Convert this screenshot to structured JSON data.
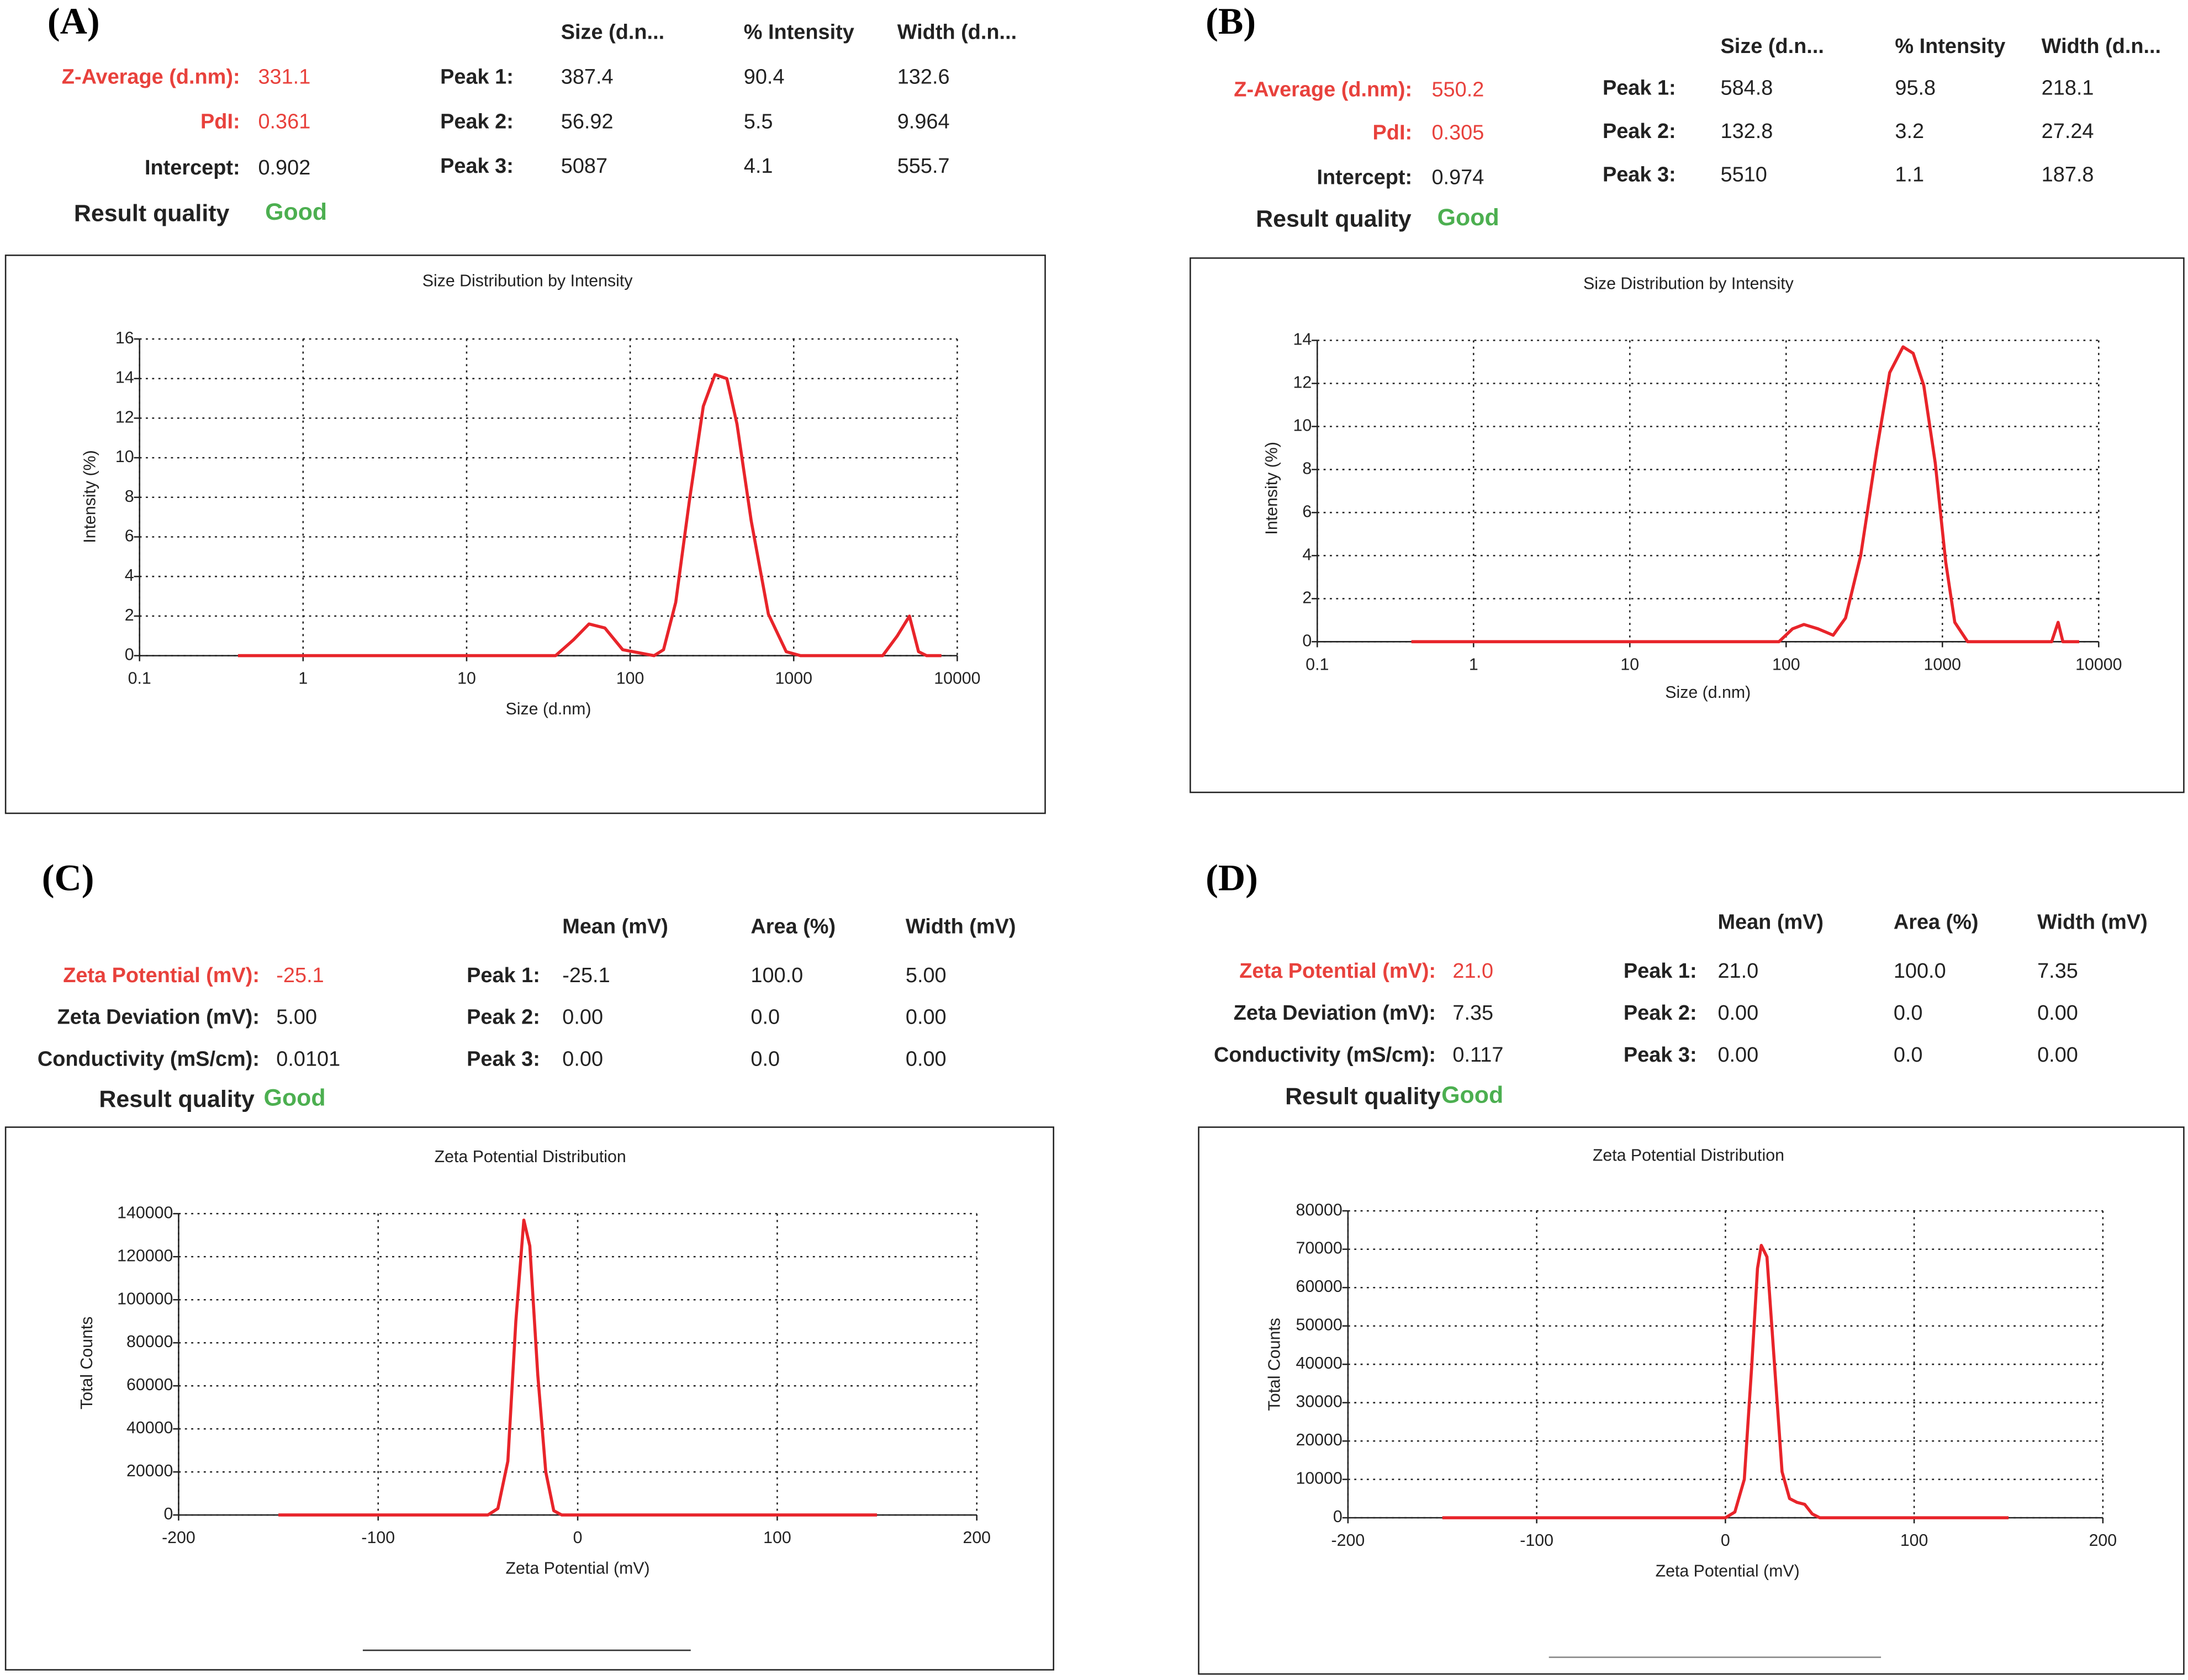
{
  "panels": [
    {
      "label": "(A)",
      "stats": [
        {
          "label": "Z-Average (d.nm):",
          "value": "331.1",
          "color": "#e8413c"
        },
        {
          "label": "PdI:",
          "value": "0.361",
          "color": "#e8413c"
        },
        {
          "label": "Intercept:",
          "value": "0.902"
        }
      ],
      "result": {
        "label": "Result quality",
        "value": "Good",
        "color": "#4caf50"
      },
      "columns": [
        "Size (d.n...",
        "% Intensity",
        "Width (d.n..."
      ],
      "rows": [
        {
          "label": "Peak 1:",
          "cells": [
            "387.4",
            "90.4",
            "132.6"
          ]
        },
        {
          "label": "Peak 2:",
          "cells": [
            "56.92",
            "5.5",
            "9.964"
          ]
        },
        {
          "label": "Peak 3:",
          "cells": [
            "5087",
            "4.1",
            "555.7"
          ]
        }
      ]
    },
    {
      "label": "(B)",
      "stats": [
        {
          "label": "Z-Average (d.nm):",
          "value": "550.2",
          "color": "#e8413c"
        },
        {
          "label": "PdI:",
          "value": "0.305",
          "color": "#e8413c"
        },
        {
          "label": "Intercept:",
          "value": "0.974"
        }
      ],
      "result": {
        "label": "Result quality",
        "value": "Good",
        "color": "#4caf50"
      },
      "columns": [
        "Size (d.n...",
        "% Intensity",
        "Width (d.n..."
      ],
      "rows": [
        {
          "label": "Peak 1:",
          "cells": [
            "584.8",
            "95.8",
            "218.1"
          ]
        },
        {
          "label": "Peak 2:",
          "cells": [
            "132.8",
            "3.2",
            "27.24"
          ]
        },
        {
          "label": "Peak 3:",
          "cells": [
            "5510",
            "1.1",
            "187.8"
          ]
        }
      ]
    },
    {
      "label": "(C)",
      "stats": [
        {
          "label": "Zeta Potential (mV):",
          "value": "-25.1",
          "color": "#e8413c"
        },
        {
          "label": "Zeta Deviation (mV):",
          "value": "5.00"
        },
        {
          "label": "Conductivity (mS/cm):",
          "value": "0.0101"
        }
      ],
      "result": {
        "label": "Result quality",
        "value": "Good",
        "color": "#4caf50"
      },
      "columns": [
        "Mean (mV)",
        "Area (%)",
        "Width (mV)"
      ],
      "rows": [
        {
          "label": "Peak 1:",
          "cells": [
            "-25.1",
            "100.0",
            "5.00"
          ]
        },
        {
          "label": "Peak 2:",
          "cells": [
            "0.00",
            "0.0",
            "0.00"
          ]
        },
        {
          "label": "Peak 3:",
          "cells": [
            "0.00",
            "0.0",
            "0.00"
          ]
        }
      ]
    },
    {
      "label": "(D)",
      "stats": [
        {
          "label": "Zeta Potential (mV):",
          "value": "21.0",
          "color": "#e8413c"
        },
        {
          "label": "Zeta Deviation (mV):",
          "value": "7.35"
        },
        {
          "label": "Conductivity (mS/cm):",
          "value": "0.117"
        }
      ],
      "result": {
        "label": "Result quality",
        "value": "Good",
        "color": "#4caf50"
      },
      "columns": [
        "Mean (mV)",
        "Area (%)",
        "Width (mV)"
      ],
      "rows": [
        {
          "label": "Peak 1:",
          "cells": [
            "21.0",
            "100.0",
            "7.35"
          ]
        },
        {
          "label": "Peak 2:",
          "cells": [
            "0.00",
            "0.0",
            "0.00"
          ]
        },
        {
          "label": "Peak 3:",
          "cells": [
            "0.00",
            "0.0",
            "0.00"
          ]
        }
      ]
    }
  ],
  "chart_data": [
    {
      "type": "line",
      "title": "Size Distribution by Intensity",
      "xlabel": "Size (d.nm)",
      "ylabel": "Intensity (%)",
      "xscale": "log",
      "xlim": [
        0.1,
        10000
      ],
      "xticks": [
        0.1,
        1,
        10,
        100,
        1000,
        10000
      ],
      "ylim": [
        0,
        16
      ],
      "yticks": [
        0,
        2,
        4,
        6,
        8,
        10,
        12,
        14,
        16
      ],
      "grid": true,
      "color": "#e8242a",
      "x": [
        0.4,
        1,
        10,
        35,
        45,
        56,
        70,
        90,
        140,
        160,
        190,
        230,
        280,
        330,
        390,
        450,
        550,
        700,
        900,
        1100,
        3500,
        4300,
        5100,
        5800,
        6500,
        8000
      ],
      "values": [
        0,
        0,
        0,
        0,
        0.8,
        1.6,
        1.4,
        0.3,
        0,
        0.3,
        2.7,
        7.8,
        12.6,
        14.2,
        14.0,
        11.7,
        6.8,
        2.1,
        0.2,
        0,
        0,
        1.0,
        2.0,
        0.2,
        0,
        0
      ]
    },
    {
      "type": "line",
      "title": "Size Distribution by Intensity",
      "xlabel": "Size (d.nm)",
      "ylabel": "Intensity (%)",
      "xscale": "log",
      "xlim": [
        0.1,
        10000
      ],
      "xticks": [
        0.1,
        1,
        10,
        100,
        1000,
        10000
      ],
      "ylim": [
        0,
        14
      ],
      "yticks": [
        0,
        2,
        4,
        6,
        8,
        10,
        12,
        14
      ],
      "grid": true,
      "color": "#e8242a",
      "x": [
        0.4,
        1,
        10,
        90,
        110,
        130,
        160,
        200,
        240,
        300,
        380,
        460,
        560,
        650,
        760,
        900,
        1050,
        1200,
        1450,
        5000,
        5500,
        5900,
        7500
      ],
      "values": [
        0,
        0,
        0,
        0,
        0.6,
        0.8,
        0.6,
        0.3,
        1.1,
        4.0,
        8.9,
        12.5,
        13.7,
        13.4,
        11.9,
        8.3,
        3.7,
        0.9,
        0,
        0,
        0.9,
        0,
        0
      ]
    },
    {
      "type": "line",
      "title": "Zeta Potential Distribution",
      "xlabel": "Zeta Potential (mV)",
      "ylabel": "Total Counts",
      "xlim": [
        -200,
        200
      ],
      "xticks": [
        -200,
        -100,
        0,
        100,
        200
      ],
      "ylim": [
        0,
        140000
      ],
      "yticks": [
        0,
        20000,
        40000,
        60000,
        80000,
        100000,
        120000,
        140000
      ],
      "grid": true,
      "color": "#e8242a",
      "x": [
        -150,
        -45,
        -40,
        -35,
        -31,
        -27,
        -24,
        -20,
        -16,
        -12,
        -8,
        150
      ],
      "values": [
        0,
        0,
        3000,
        25000,
        90000,
        137000,
        125000,
        65000,
        20000,
        2000,
        0,
        0
      ]
    },
    {
      "type": "line",
      "title": "Zeta Potential Distribution",
      "xlabel": "Zeta Potential (mV)",
      "ylabel": "Total Counts",
      "xlim": [
        -200,
        200
      ],
      "xticks": [
        -200,
        -100,
        0,
        100,
        200
      ],
      "ylim": [
        0,
        80000
      ],
      "yticks": [
        0,
        10000,
        20000,
        30000,
        40000,
        50000,
        60000,
        70000,
        80000
      ],
      "grid": true,
      "color": "#e8242a",
      "x": [
        -150,
        0,
        5,
        10,
        14,
        17,
        19,
        22,
        26,
        30,
        34,
        38,
        42,
        46,
        50,
        150
      ],
      "values": [
        0,
        0,
        1500,
        10000,
        40000,
        65000,
        71000,
        68000,
        40000,
        12000,
        5000,
        4000,
        3500,
        1000,
        0,
        0
      ]
    }
  ]
}
